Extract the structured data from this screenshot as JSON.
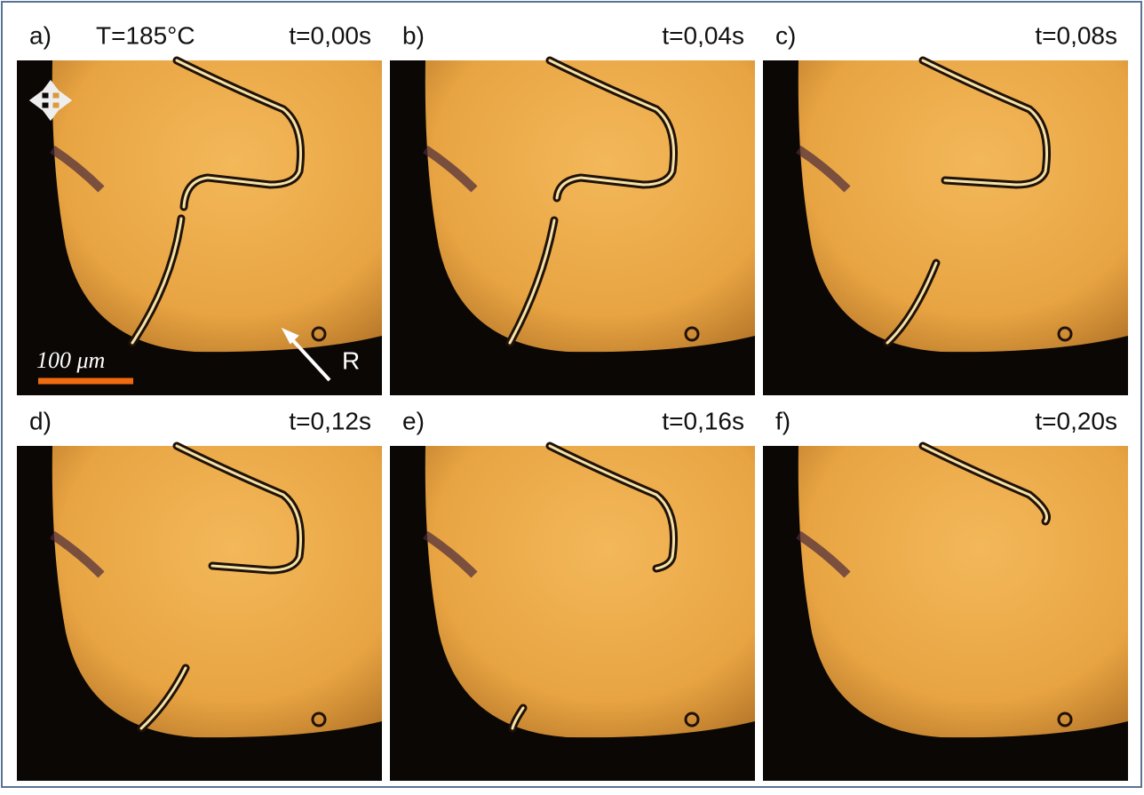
{
  "panels": [
    {
      "label": "a)",
      "time": "t=0,00s"
    },
    {
      "label": "b)",
      "time": "t=0,04s"
    },
    {
      "label": "c)",
      "time": "t=0,08s"
    },
    {
      "label": "d)",
      "time": "t=0,12s"
    },
    {
      "label": "e)",
      "time": "t=0,16s"
    },
    {
      "label": "f)",
      "time": "t=0,20s"
    }
  ],
  "temperature": "T=185°C",
  "scale_bar": "100 μm",
  "rubbing_label": "R"
}
